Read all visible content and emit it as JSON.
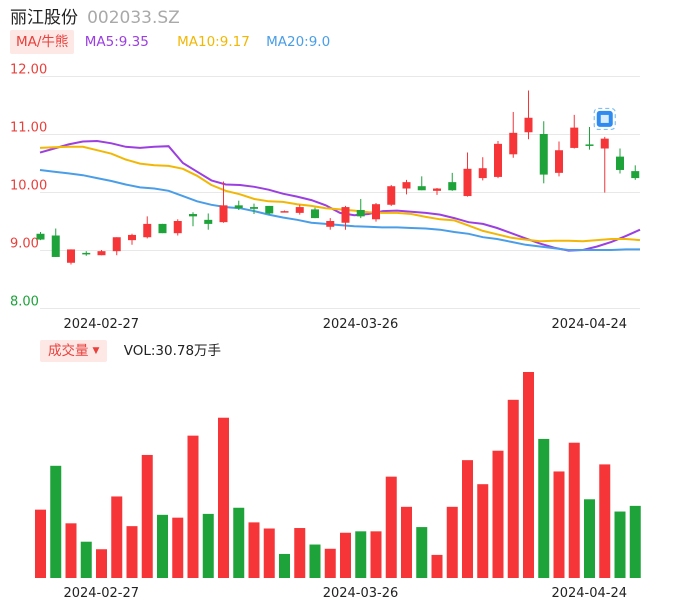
{
  "header": {
    "stock_name": "丽江股份",
    "stock_code": "002033.SZ"
  },
  "ma_legend": {
    "toggle_label": "MA/牛熊",
    "items": [
      {
        "key": "MA5",
        "label": "MA5:9.35",
        "color": "#9b3fe0"
      },
      {
        "key": "MA10",
        "label": "MA10:9.17",
        "color": "#f2b705"
      },
      {
        "key": "MA20",
        "label": "MA20:9.0",
        "color": "#4a9ee8"
      }
    ]
  },
  "volume_legend": {
    "toggle_label": "成交量",
    "value_label": "VOL:30.78万手"
  },
  "colors": {
    "up": "#f63538",
    "down": "#1ea23a",
    "grid": "#e8e8e8",
    "price_tick": "#e8413c",
    "low_tick": "#1ea23a",
    "date_tick": "#222222"
  },
  "icons": {
    "candle_marker": "info-badge-icon",
    "vol_toggle_caret": "caret-down-icon"
  },
  "chart_data": [
    {
      "type": "candlestick",
      "title": "",
      "ylim": [
        8.0,
        12.0
      ],
      "y_ticks": [
        "12.00",
        "11.00",
        "10.00",
        "9.00",
        "8.00"
      ],
      "x_ticks": [
        "2024-02-27",
        "2024-03-26",
        "2024-04-24"
      ],
      "x_tick_indices": [
        3,
        20,
        35
      ],
      "grid": true,
      "candles": [
        {
          "open": 9.28,
          "high": 9.31,
          "low": 9.17,
          "close": 9.18
        },
        {
          "open": 9.25,
          "high": 9.37,
          "low": 8.88,
          "close": 8.88
        },
        {
          "open": 8.78,
          "high": 9.01,
          "low": 8.75,
          "close": 9.01
        },
        {
          "open": 8.95,
          "high": 8.98,
          "low": 8.9,
          "close": 8.93
        },
        {
          "open": 8.91,
          "high": 9.0,
          "low": 8.91,
          "close": 8.98
        },
        {
          "open": 8.98,
          "high": 9.22,
          "low": 8.91,
          "close": 9.22
        },
        {
          "open": 9.17,
          "high": 9.28,
          "low": 9.09,
          "close": 9.26
        },
        {
          "open": 9.22,
          "high": 9.58,
          "low": 9.2,
          "close": 9.45
        },
        {
          "open": 9.45,
          "high": 9.45,
          "low": 9.29,
          "close": 9.29
        },
        {
          "open": 9.29,
          "high": 9.53,
          "low": 9.25,
          "close": 9.5
        },
        {
          "open": 9.62,
          "high": 9.65,
          "low": 9.41,
          "close": 9.58
        },
        {
          "open": 9.52,
          "high": 9.63,
          "low": 9.35,
          "close": 9.45
        },
        {
          "open": 9.48,
          "high": 10.18,
          "low": 9.47,
          "close": 9.77
        },
        {
          "open": 9.77,
          "high": 9.85,
          "low": 9.69,
          "close": 9.72
        },
        {
          "open": 9.74,
          "high": 9.8,
          "low": 9.62,
          "close": 9.71
        },
        {
          "open": 9.76,
          "high": 9.76,
          "low": 9.61,
          "close": 9.63
        },
        {
          "open": 9.65,
          "high": 9.68,
          "low": 9.65,
          "close": 9.67
        },
        {
          "open": 9.64,
          "high": 9.78,
          "low": 9.61,
          "close": 9.74
        },
        {
          "open": 9.7,
          "high": 9.73,
          "low": 9.55,
          "close": 9.55
        },
        {
          "open": 9.4,
          "high": 9.55,
          "low": 9.35,
          "close": 9.5
        },
        {
          "open": 9.47,
          "high": 9.76,
          "low": 9.35,
          "close": 9.74
        },
        {
          "open": 9.69,
          "high": 9.88,
          "low": 9.55,
          "close": 9.58
        },
        {
          "open": 9.53,
          "high": 9.81,
          "low": 9.49,
          "close": 9.79
        },
        {
          "open": 9.78,
          "high": 10.12,
          "low": 9.76,
          "close": 10.1
        },
        {
          "open": 10.06,
          "high": 10.21,
          "low": 9.96,
          "close": 10.17
        },
        {
          "open": 10.1,
          "high": 10.27,
          "low": 10.03,
          "close": 10.03
        },
        {
          "open": 10.02,
          "high": 10.07,
          "low": 9.95,
          "close": 10.06
        },
        {
          "open": 10.17,
          "high": 10.33,
          "low": 10.02,
          "close": 10.03
        },
        {
          "open": 9.93,
          "high": 10.68,
          "low": 9.92,
          "close": 10.4
        },
        {
          "open": 10.24,
          "high": 10.6,
          "low": 10.2,
          "close": 10.41
        },
        {
          "open": 10.26,
          "high": 10.88,
          "low": 10.24,
          "close": 10.83
        },
        {
          "open": 10.65,
          "high": 11.38,
          "low": 10.59,
          "close": 11.02
        },
        {
          "open": 11.03,
          "high": 11.75,
          "low": 10.91,
          "close": 11.28
        },
        {
          "open": 11.0,
          "high": 11.22,
          "low": 10.15,
          "close": 10.3
        },
        {
          "open": 10.33,
          "high": 10.87,
          "low": 10.27,
          "close": 10.72
        },
        {
          "open": 10.76,
          "high": 11.33,
          "low": 10.75,
          "close": 11.11
        },
        {
          "open": 10.82,
          "high": 11.12,
          "low": 10.73,
          "close": 10.8
        },
        {
          "open": 10.75,
          "high": 10.95,
          "low": 9.99,
          "close": 10.92
        },
        {
          "open": 10.61,
          "high": 10.75,
          "low": 10.32,
          "close": 10.38
        },
        {
          "open": 10.36,
          "high": 10.46,
          "low": 10.21,
          "close": 10.24
        }
      ],
      "series": [
        {
          "name": "MA5",
          "values": [
            10.68,
            10.75,
            10.82,
            10.87,
            10.88,
            10.84,
            10.78,
            10.76,
            10.78,
            10.79,
            10.5,
            10.35,
            10.2,
            10.13,
            10.12,
            10.09,
            10.04,
            9.97,
            9.92,
            9.86,
            9.77,
            9.64,
            9.6,
            9.62,
            9.67,
            9.68,
            9.66,
            9.64,
            9.61,
            9.55,
            9.48,
            9.45,
            9.38,
            9.29,
            9.2,
            9.11,
            9.04,
            8.99,
            9.0,
            9.06,
            9.14,
            9.24,
            9.35
          ]
        },
        {
          "name": "MA10",
          "values": [
            10.76,
            10.77,
            10.78,
            10.78,
            10.72,
            10.66,
            10.56,
            10.49,
            10.46,
            10.45,
            10.4,
            10.28,
            10.12,
            10.02,
            9.96,
            9.88,
            9.84,
            9.83,
            9.79,
            9.76,
            9.72,
            9.7,
            9.68,
            9.65,
            9.64,
            9.64,
            9.62,
            9.57,
            9.53,
            9.51,
            9.42,
            9.33,
            9.27,
            9.21,
            9.18,
            9.15,
            9.16,
            9.16,
            9.15,
            9.17,
            9.19,
            9.19,
            9.17
          ]
        },
        {
          "name": "MA20",
          "values": [
            10.38,
            10.35,
            10.32,
            10.29,
            10.24,
            10.19,
            10.13,
            10.08,
            10.06,
            10.02,
            9.93,
            9.84,
            9.78,
            9.74,
            9.72,
            9.67,
            9.61,
            9.56,
            9.52,
            9.47,
            9.45,
            9.43,
            9.41,
            9.4,
            9.39,
            9.39,
            9.38,
            9.37,
            9.35,
            9.31,
            9.28,
            9.22,
            9.19,
            9.14,
            9.09,
            9.06,
            9.03,
            9.0,
            9.0,
            9.0,
            9.0,
            9.01,
            9.01
          ]
        }
      ]
    },
    {
      "type": "bar",
      "title": "Volume",
      "x_ticks": [
        "2024-02-27",
        "2024-03-26",
        "2024-04-24"
      ],
      "values": [
        14.5,
        23.8,
        11.6,
        7.7,
        6.1,
        17.3,
        11.0,
        26.1,
        13.4,
        12.8,
        30.2,
        13.6,
        34.0,
        14.9,
        11.8,
        10.5,
        5.1,
        10.6,
        7.1,
        6.2,
        9.6,
        9.9,
        9.9,
        21.5,
        15.1,
        10.8,
        4.9,
        15.1,
        25.0,
        19.9,
        27.0,
        37.8,
        43.7,
        29.5,
        22.6,
        28.7,
        16.7,
        24.1,
        14.1,
        15.3
      ],
      "directions": [
        "up",
        "down",
        "up",
        "down",
        "up",
        "up",
        "up",
        "up",
        "down",
        "up",
        "up",
        "down",
        "up",
        "down",
        "up",
        "up",
        "down",
        "up",
        "down",
        "up",
        "up",
        "down",
        "up",
        "up",
        "up",
        "down",
        "up",
        "up",
        "up",
        "up",
        "up",
        "up",
        "up",
        "down",
        "up",
        "up",
        "down",
        "up",
        "down",
        "down"
      ]
    }
  ]
}
